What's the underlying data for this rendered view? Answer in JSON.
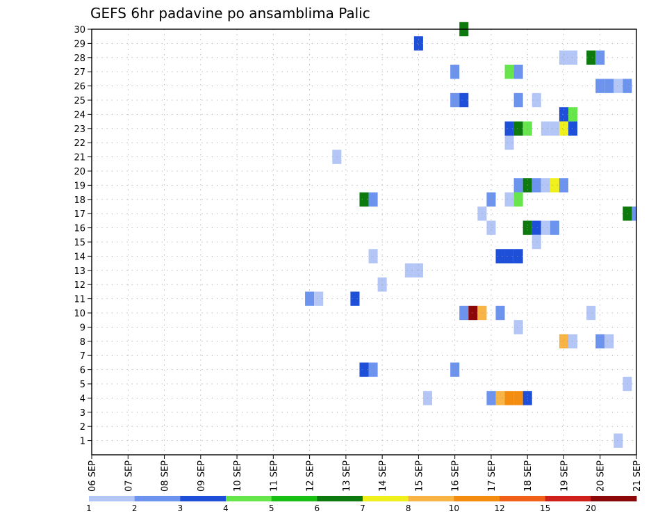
{
  "chart_data": {
    "type": "heatmap",
    "title": "GEFS 6hr padavine po ansamblima Palic",
    "x_dates": [
      "06 SEP",
      "07 SEP",
      "08 SEP",
      "09 SEP",
      "10 SEP",
      "11 SEP",
      "12 SEP",
      "13 SEP",
      "14 SEP",
      "15 SEP",
      "16 SEP",
      "17 SEP",
      "18 SEP",
      "19 SEP",
      "20 SEP",
      "21 SEP"
    ],
    "xlim": [
      0,
      60
    ],
    "y_ticks": [
      "1",
      "2",
      "3",
      "4",
      "5",
      "6",
      "7",
      "8",
      "9",
      "10",
      "11",
      "12",
      "13",
      "14",
      "15",
      "16",
      "17",
      "18",
      "19",
      "20",
      "21",
      "22",
      "23",
      "24",
      "25",
      "26",
      "27",
      "28",
      "29",
      "30"
    ],
    "ylim": [
      0,
      30
    ],
    "grid": true,
    "colorscale": {
      "labels": [
        "1",
        "2",
        "3",
        "4",
        "5",
        "6",
        "7",
        "8",
        "10",
        "12",
        "15",
        "20"
      ],
      "colors": [
        "#b4c6f5",
        "#6c94ee",
        "#1e4fd8",
        "#66e64a",
        "#18c014",
        "#0c7a0c",
        "#f0f01c",
        "#f8b444",
        "#f48c10",
        "#f06018",
        "#d0201a",
        "#8c0808"
      ]
    },
    "cells": [
      {
        "m": 30,
        "t": 41,
        "v": 6
      },
      {
        "m": 29,
        "t": 36,
        "v": 3
      },
      {
        "m": 28,
        "t": 52,
        "v": 1
      },
      {
        "m": 28,
        "t": 53,
        "v": 1
      },
      {
        "m": 28,
        "t": 55,
        "v": 6
      },
      {
        "m": 28,
        "t": 56,
        "v": 2
      },
      {
        "m": 27,
        "t": 40,
        "v": 2
      },
      {
        "m": 27,
        "t": 46,
        "v": 4
      },
      {
        "m": 27,
        "t": 47,
        "v": 2
      },
      {
        "m": 26,
        "t": 56,
        "v": 2
      },
      {
        "m": 26,
        "t": 57,
        "v": 2
      },
      {
        "m": 26,
        "t": 58,
        "v": 1
      },
      {
        "m": 26,
        "t": 59,
        "v": 2
      },
      {
        "m": 25,
        "t": 40,
        "v": 2
      },
      {
        "m": 25,
        "t": 41,
        "v": 3
      },
      {
        "m": 25,
        "t": 47,
        "v": 2
      },
      {
        "m": 25,
        "t": 49,
        "v": 1
      },
      {
        "m": 24,
        "t": 52,
        "v": 3
      },
      {
        "m": 24,
        "t": 53,
        "v": 4
      },
      {
        "m": 23,
        "t": 46,
        "v": 3
      },
      {
        "m": 23,
        "t": 47,
        "v": 6
      },
      {
        "m": 23,
        "t": 48,
        "v": 4
      },
      {
        "m": 23,
        "t": 50,
        "v": 1
      },
      {
        "m": 23,
        "t": 51,
        "v": 1
      },
      {
        "m": 23,
        "t": 52,
        "v": 7
      },
      {
        "m": 23,
        "t": 53,
        "v": 3
      },
      {
        "m": 22,
        "t": 46,
        "v": 1
      },
      {
        "m": 21,
        "t": 27,
        "v": 1
      },
      {
        "m": 19,
        "t": 47,
        "v": 2
      },
      {
        "m": 19,
        "t": 48,
        "v": 6
      },
      {
        "m": 19,
        "t": 49,
        "v": 2
      },
      {
        "m": 19,
        "t": 50,
        "v": 1
      },
      {
        "m": 19,
        "t": 51,
        "v": 7
      },
      {
        "m": 19,
        "t": 52,
        "v": 2
      },
      {
        "m": 18,
        "t": 30,
        "v": 6
      },
      {
        "m": 18,
        "t": 31,
        "v": 2
      },
      {
        "m": 18,
        "t": 44,
        "v": 2
      },
      {
        "m": 18,
        "t": 46,
        "v": 1
      },
      {
        "m": 18,
        "t": 47,
        "v": 4
      },
      {
        "m": 17,
        "t": 43,
        "v": 1
      },
      {
        "m": 17,
        "t": 59,
        "v": 6
      },
      {
        "m": 17,
        "t": 60,
        "v": 2
      },
      {
        "m": 16,
        "t": 44,
        "v": 1
      },
      {
        "m": 16,
        "t": 48,
        "v": 6
      },
      {
        "m": 16,
        "t": 49,
        "v": 3
      },
      {
        "m": 16,
        "t": 50,
        "v": 1
      },
      {
        "m": 16,
        "t": 51,
        "v": 2
      },
      {
        "m": 15,
        "t": 49,
        "v": 1
      },
      {
        "m": 14,
        "t": 31,
        "v": 1
      },
      {
        "m": 14,
        "t": 45,
        "v": 3
      },
      {
        "m": 14,
        "t": 46,
        "v": 3
      },
      {
        "m": 14,
        "t": 47,
        "v": 3
      },
      {
        "m": 13,
        "t": 35,
        "v": 1
      },
      {
        "m": 13,
        "t": 36,
        "v": 1
      },
      {
        "m": 12,
        "t": 32,
        "v": 1
      },
      {
        "m": 11,
        "t": 24,
        "v": 2
      },
      {
        "m": 11,
        "t": 25,
        "v": 1
      },
      {
        "m": 11,
        "t": 29,
        "v": 3
      },
      {
        "m": 10,
        "t": 41,
        "v": 2
      },
      {
        "m": 10,
        "t": 42,
        "v": 20
      },
      {
        "m": 10,
        "t": 43,
        "v": 8
      },
      {
        "m": 10,
        "t": 45,
        "v": 2
      },
      {
        "m": 10,
        "t": 55,
        "v": 1
      },
      {
        "m": 9,
        "t": 47,
        "v": 1
      },
      {
        "m": 8,
        "t": 52,
        "v": 8
      },
      {
        "m": 8,
        "t": 53,
        "v": 1
      },
      {
        "m": 8,
        "t": 56,
        "v": 2
      },
      {
        "m": 8,
        "t": 57,
        "v": 1
      },
      {
        "m": 6,
        "t": 30,
        "v": 3
      },
      {
        "m": 6,
        "t": 31,
        "v": 2
      },
      {
        "m": 6,
        "t": 40,
        "v": 2
      },
      {
        "m": 5,
        "t": 59,
        "v": 1
      },
      {
        "m": 4,
        "t": 37,
        "v": 1
      },
      {
        "m": 4,
        "t": 44,
        "v": 2
      },
      {
        "m": 4,
        "t": 45,
        "v": 8
      },
      {
        "m": 4,
        "t": 46,
        "v": 10
      },
      {
        "m": 4,
        "t": 47,
        "v": 10
      },
      {
        "m": 4,
        "t": 48,
        "v": 3
      },
      {
        "m": 1,
        "t": 58,
        "v": 1
      }
    ]
  }
}
